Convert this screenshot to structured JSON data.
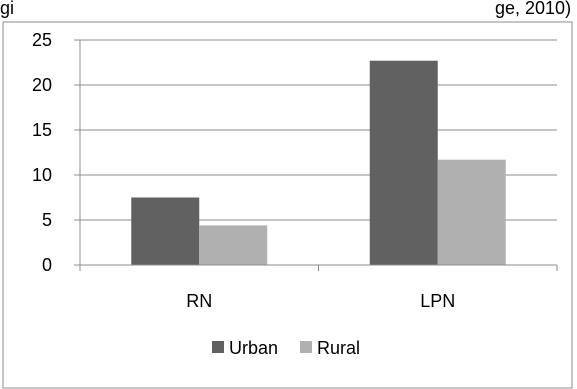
{
  "chart_data": {
    "type": "bar",
    "title": "gi",
    "title_right": "ge, 2010)",
    "categories": [
      "RN",
      "LPN"
    ],
    "series": [
      {
        "name": "Urban",
        "values": [
          7.5,
          22.7
        ],
        "color": "#616161"
      },
      {
        "name": "Rural",
        "values": [
          4.4,
          11.7
        ],
        "color": "#b0b0b0"
      }
    ],
    "yticks": [
      "0",
      "5",
      "10",
      "15",
      "20",
      "25"
    ],
    "ylim": [
      0,
      25
    ],
    "grid": true,
    "legend": "bottom",
    "colors": {
      "grid": "#8c8c8c",
      "axis": "#8c8c8c",
      "border": "#8c8c8c"
    }
  }
}
